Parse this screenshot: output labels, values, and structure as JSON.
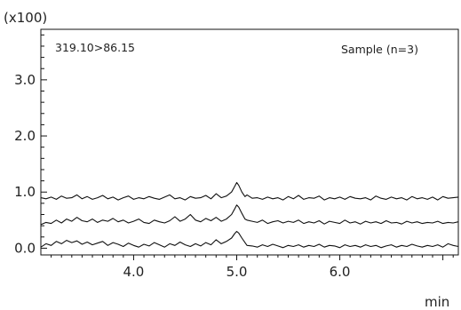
{
  "chart_data": {
    "type": "line",
    "y_multiplier_label": "(x100)",
    "transition_label": "319.10>86.15",
    "sample_label": "Sample (n=3)",
    "xlabel": "min",
    "xlim": [
      3.1,
      7.15
    ],
    "ylim": [
      -0.12,
      3.9
    ],
    "x_ticks": [
      {
        "value": 4.0,
        "label": "4.0"
      },
      {
        "value": 5.0,
        "label": "5.0"
      },
      {
        "value": 6.0,
        "label": "6.0"
      }
    ],
    "y_ticks": [
      {
        "value": 0.0,
        "label": "0.0"
      },
      {
        "value": 1.0,
        "label": "1.0"
      },
      {
        "value": 2.0,
        "label": "2.0"
      },
      {
        "value": 3.0,
        "label": "3.0"
      }
    ],
    "series": [
      {
        "baseline": 0.88,
        "x": [
          3.1,
          3.15,
          3.2,
          3.25,
          3.3,
          3.35,
          3.4,
          3.45,
          3.5,
          3.55,
          3.6,
          3.65,
          3.7,
          3.75,
          3.8,
          3.85,
          3.9,
          3.95,
          4.0,
          4.05,
          4.1,
          4.15,
          4.2,
          4.25,
          4.3,
          4.35,
          4.4,
          4.45,
          4.5,
          4.55,
          4.6,
          4.65,
          4.7,
          4.75,
          4.8,
          4.85,
          4.9,
          4.95,
          4.98,
          5.0,
          5.02,
          5.05,
          5.08,
          5.1,
          5.15,
          5.2,
          5.25,
          5.3,
          5.35,
          5.4,
          5.45,
          5.5,
          5.55,
          5.6,
          5.65,
          5.7,
          5.75,
          5.8,
          5.85,
          5.9,
          5.95,
          6.0,
          6.05,
          6.1,
          6.15,
          6.2,
          6.25,
          6.3,
          6.35,
          6.4,
          6.45,
          6.5,
          6.55,
          6.6,
          6.65,
          6.7,
          6.75,
          6.8,
          6.85,
          6.9,
          6.95,
          7.0,
          7.05,
          7.1,
          7.15
        ],
        "y": [
          0.9,
          0.88,
          0.91,
          0.87,
          0.93,
          0.89,
          0.9,
          0.95,
          0.88,
          0.92,
          0.87,
          0.9,
          0.94,
          0.88,
          0.91,
          0.86,
          0.9,
          0.93,
          0.87,
          0.9,
          0.88,
          0.92,
          0.89,
          0.87,
          0.91,
          0.95,
          0.88,
          0.9,
          0.86,
          0.92,
          0.89,
          0.9,
          0.94,
          0.88,
          0.97,
          0.9,
          0.93,
          1.0,
          1.1,
          1.17,
          1.12,
          1.0,
          0.92,
          0.95,
          0.89,
          0.9,
          0.87,
          0.91,
          0.88,
          0.9,
          0.86,
          0.92,
          0.88,
          0.94,
          0.87,
          0.9,
          0.89,
          0.93,
          0.86,
          0.9,
          0.88,
          0.91,
          0.87,
          0.92,
          0.89,
          0.88,
          0.9,
          0.86,
          0.93,
          0.89,
          0.87,
          0.91,
          0.88,
          0.9,
          0.86,
          0.92,
          0.88,
          0.9,
          0.87,
          0.91,
          0.86,
          0.92,
          0.89,
          0.9,
          0.91
        ]
      },
      {
        "baseline": 0.45,
        "x": [
          3.1,
          3.15,
          3.2,
          3.25,
          3.3,
          3.35,
          3.4,
          3.45,
          3.5,
          3.55,
          3.6,
          3.65,
          3.7,
          3.75,
          3.8,
          3.85,
          3.9,
          3.95,
          4.0,
          4.05,
          4.1,
          4.15,
          4.2,
          4.25,
          4.3,
          4.35,
          4.4,
          4.45,
          4.5,
          4.55,
          4.6,
          4.65,
          4.7,
          4.75,
          4.8,
          4.85,
          4.9,
          4.95,
          4.98,
          5.0,
          5.02,
          5.05,
          5.08,
          5.1,
          5.15,
          5.2,
          5.25,
          5.3,
          5.35,
          5.4,
          5.45,
          5.5,
          5.55,
          5.6,
          5.65,
          5.7,
          5.75,
          5.8,
          5.85,
          5.9,
          5.95,
          6.0,
          6.05,
          6.1,
          6.15,
          6.2,
          6.25,
          6.3,
          6.35,
          6.4,
          6.45,
          6.5,
          6.55,
          6.6,
          6.65,
          6.7,
          6.75,
          6.8,
          6.85,
          6.9,
          6.95,
          7.0,
          7.05,
          7.1,
          7.15
        ],
        "y": [
          0.42,
          0.46,
          0.44,
          0.5,
          0.45,
          0.52,
          0.48,
          0.55,
          0.49,
          0.47,
          0.52,
          0.46,
          0.5,
          0.48,
          0.53,
          0.47,
          0.5,
          0.45,
          0.48,
          0.52,
          0.46,
          0.44,
          0.5,
          0.47,
          0.45,
          0.49,
          0.56,
          0.48,
          0.52,
          0.6,
          0.5,
          0.47,
          0.53,
          0.49,
          0.55,
          0.48,
          0.52,
          0.6,
          0.7,
          0.77,
          0.73,
          0.62,
          0.52,
          0.5,
          0.48,
          0.46,
          0.5,
          0.44,
          0.47,
          0.49,
          0.45,
          0.48,
          0.46,
          0.5,
          0.44,
          0.47,
          0.45,
          0.49,
          0.43,
          0.48,
          0.46,
          0.44,
          0.5,
          0.45,
          0.47,
          0.43,
          0.48,
          0.45,
          0.47,
          0.44,
          0.49,
          0.45,
          0.46,
          0.43,
          0.48,
          0.45,
          0.47,
          0.44,
          0.46,
          0.45,
          0.48,
          0.44,
          0.46,
          0.45,
          0.47
        ]
      },
      {
        "baseline": 0.05,
        "x": [
          3.1,
          3.15,
          3.2,
          3.25,
          3.3,
          3.35,
          3.4,
          3.45,
          3.5,
          3.55,
          3.6,
          3.65,
          3.7,
          3.75,
          3.8,
          3.85,
          3.9,
          3.95,
          4.0,
          4.05,
          4.1,
          4.15,
          4.2,
          4.25,
          4.3,
          4.35,
          4.4,
          4.45,
          4.5,
          4.55,
          4.6,
          4.65,
          4.7,
          4.75,
          4.8,
          4.85,
          4.9,
          4.95,
          4.98,
          5.0,
          5.02,
          5.05,
          5.08,
          5.1,
          5.15,
          5.2,
          5.25,
          5.3,
          5.35,
          5.4,
          5.45,
          5.5,
          5.55,
          5.6,
          5.65,
          5.7,
          5.75,
          5.8,
          5.85,
          5.9,
          5.95,
          6.0,
          6.05,
          6.1,
          6.15,
          6.2,
          6.25,
          6.3,
          6.35,
          6.4,
          6.45,
          6.5,
          6.55,
          6.6,
          6.65,
          6.7,
          6.75,
          6.8,
          6.85,
          6.9,
          6.95,
          7.0,
          7.05,
          7.1,
          7.15
        ],
        "y": [
          0.02,
          0.08,
          0.05,
          0.12,
          0.08,
          0.14,
          0.1,
          0.13,
          0.07,
          0.11,
          0.06,
          0.09,
          0.12,
          0.05,
          0.1,
          0.07,
          0.03,
          0.09,
          0.05,
          0.02,
          0.07,
          0.04,
          0.1,
          0.06,
          0.02,
          0.08,
          0.05,
          0.11,
          0.06,
          0.03,
          0.08,
          0.04,
          0.1,
          0.06,
          0.15,
          0.08,
          0.12,
          0.18,
          0.26,
          0.3,
          0.27,
          0.18,
          0.1,
          0.05,
          0.04,
          0.02,
          0.06,
          0.03,
          0.07,
          0.04,
          0.01,
          0.05,
          0.03,
          0.06,
          0.02,
          0.05,
          0.03,
          0.07,
          0.02,
          0.05,
          0.04,
          0.01,
          0.06,
          0.03,
          0.05,
          0.02,
          0.06,
          0.03,
          0.05,
          0.01,
          0.04,
          0.06,
          0.02,
          0.05,
          0.03,
          0.07,
          0.04,
          0.02,
          0.05,
          0.03,
          0.06,
          0.02,
          0.08,
          0.05,
          0.03
        ]
      }
    ]
  }
}
